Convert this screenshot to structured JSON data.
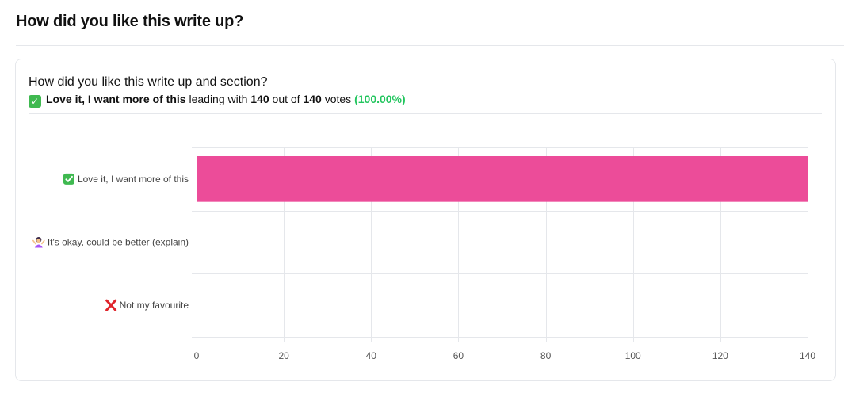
{
  "page": {
    "title": "How did you like this write up?"
  },
  "poll": {
    "question": "How did you like this write up and section?",
    "leader_icon": "check-mark-icon",
    "leader_label": "Love it, I want more of this",
    "leading_with_text": "leading with",
    "leader_votes": "140",
    "out_of_text": "out of",
    "total_votes": "140",
    "votes_text": "votes",
    "leader_percent": "(100.00%)"
  },
  "colors": {
    "bar": "#ec4c99",
    "accent_green": "#22c55e",
    "check_green": "#3fb950",
    "cross_red": "#e0242b",
    "grid": "#e5e7eb"
  },
  "chart_data": {
    "type": "bar",
    "orientation": "horizontal",
    "categories": [
      {
        "label": "Love it, I want more of this",
        "icon": "check-mark-icon"
      },
      {
        "label": "It's okay, could be better (explain)",
        "icon": "person-shrugging-icon"
      },
      {
        "label": "Not my favourite",
        "icon": "cross-mark-icon"
      }
    ],
    "values": [
      140,
      0,
      0
    ],
    "xlim": [
      0,
      140
    ],
    "xticks": [
      0,
      20,
      40,
      60,
      80,
      100,
      120,
      140
    ],
    "grid": true
  }
}
